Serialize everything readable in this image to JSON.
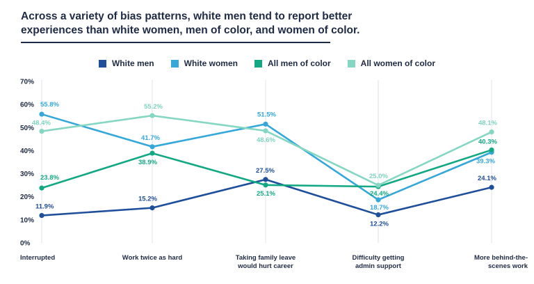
{
  "title": "Across a variety of bias patterns, white men tend to report better experiences than white women, men of color, and women of color.",
  "chart_data": {
    "type": "line",
    "categories": [
      [
        "Interrupted"
      ],
      [
        "Work twice as hard"
      ],
      [
        "Taking family leave",
        "would hurt career"
      ],
      [
        "Difficulty getting",
        "admin support"
      ],
      [
        "More behind-the-",
        "scenes work"
      ]
    ],
    "y_ticks": [
      "0%",
      "10%",
      "20%",
      "30%",
      "40%",
      "50%",
      "60%",
      "70%"
    ],
    "ylim": [
      0,
      70
    ],
    "grid": "vertical",
    "legend_position": "top-center",
    "series": [
      {
        "name": "White men",
        "color": "#1f4e9a",
        "values": [
          11.9,
          15.2,
          27.5,
          12.2,
          24.1
        ],
        "labels": [
          "11.9%",
          "15.2%",
          "27.5%",
          "12.2%",
          "24.1%"
        ]
      },
      {
        "name": "White women",
        "color": "#35a7d9",
        "values": [
          55.8,
          41.7,
          51.5,
          18.7,
          39.3
        ],
        "labels": [
          "55.8%",
          "41.7%",
          "51.5%",
          "18.7%",
          "39.3%"
        ]
      },
      {
        "name": "All men of color",
        "color": "#13a884",
        "values": [
          23.8,
          38.9,
          25.1,
          24.4,
          40.3
        ],
        "labels": [
          "23.8%",
          "38.9%",
          "25.1%",
          "24.4%",
          "40.3%"
        ]
      },
      {
        "name": "All women of color",
        "color": "#85d7c3",
        "values": [
          48.4,
          55.2,
          48.6,
          25.0,
          48.1
        ],
        "labels": [
          "48.4%",
          "55.2%",
          "48.6%",
          "25.0%",
          "48.1%"
        ]
      }
    ]
  }
}
